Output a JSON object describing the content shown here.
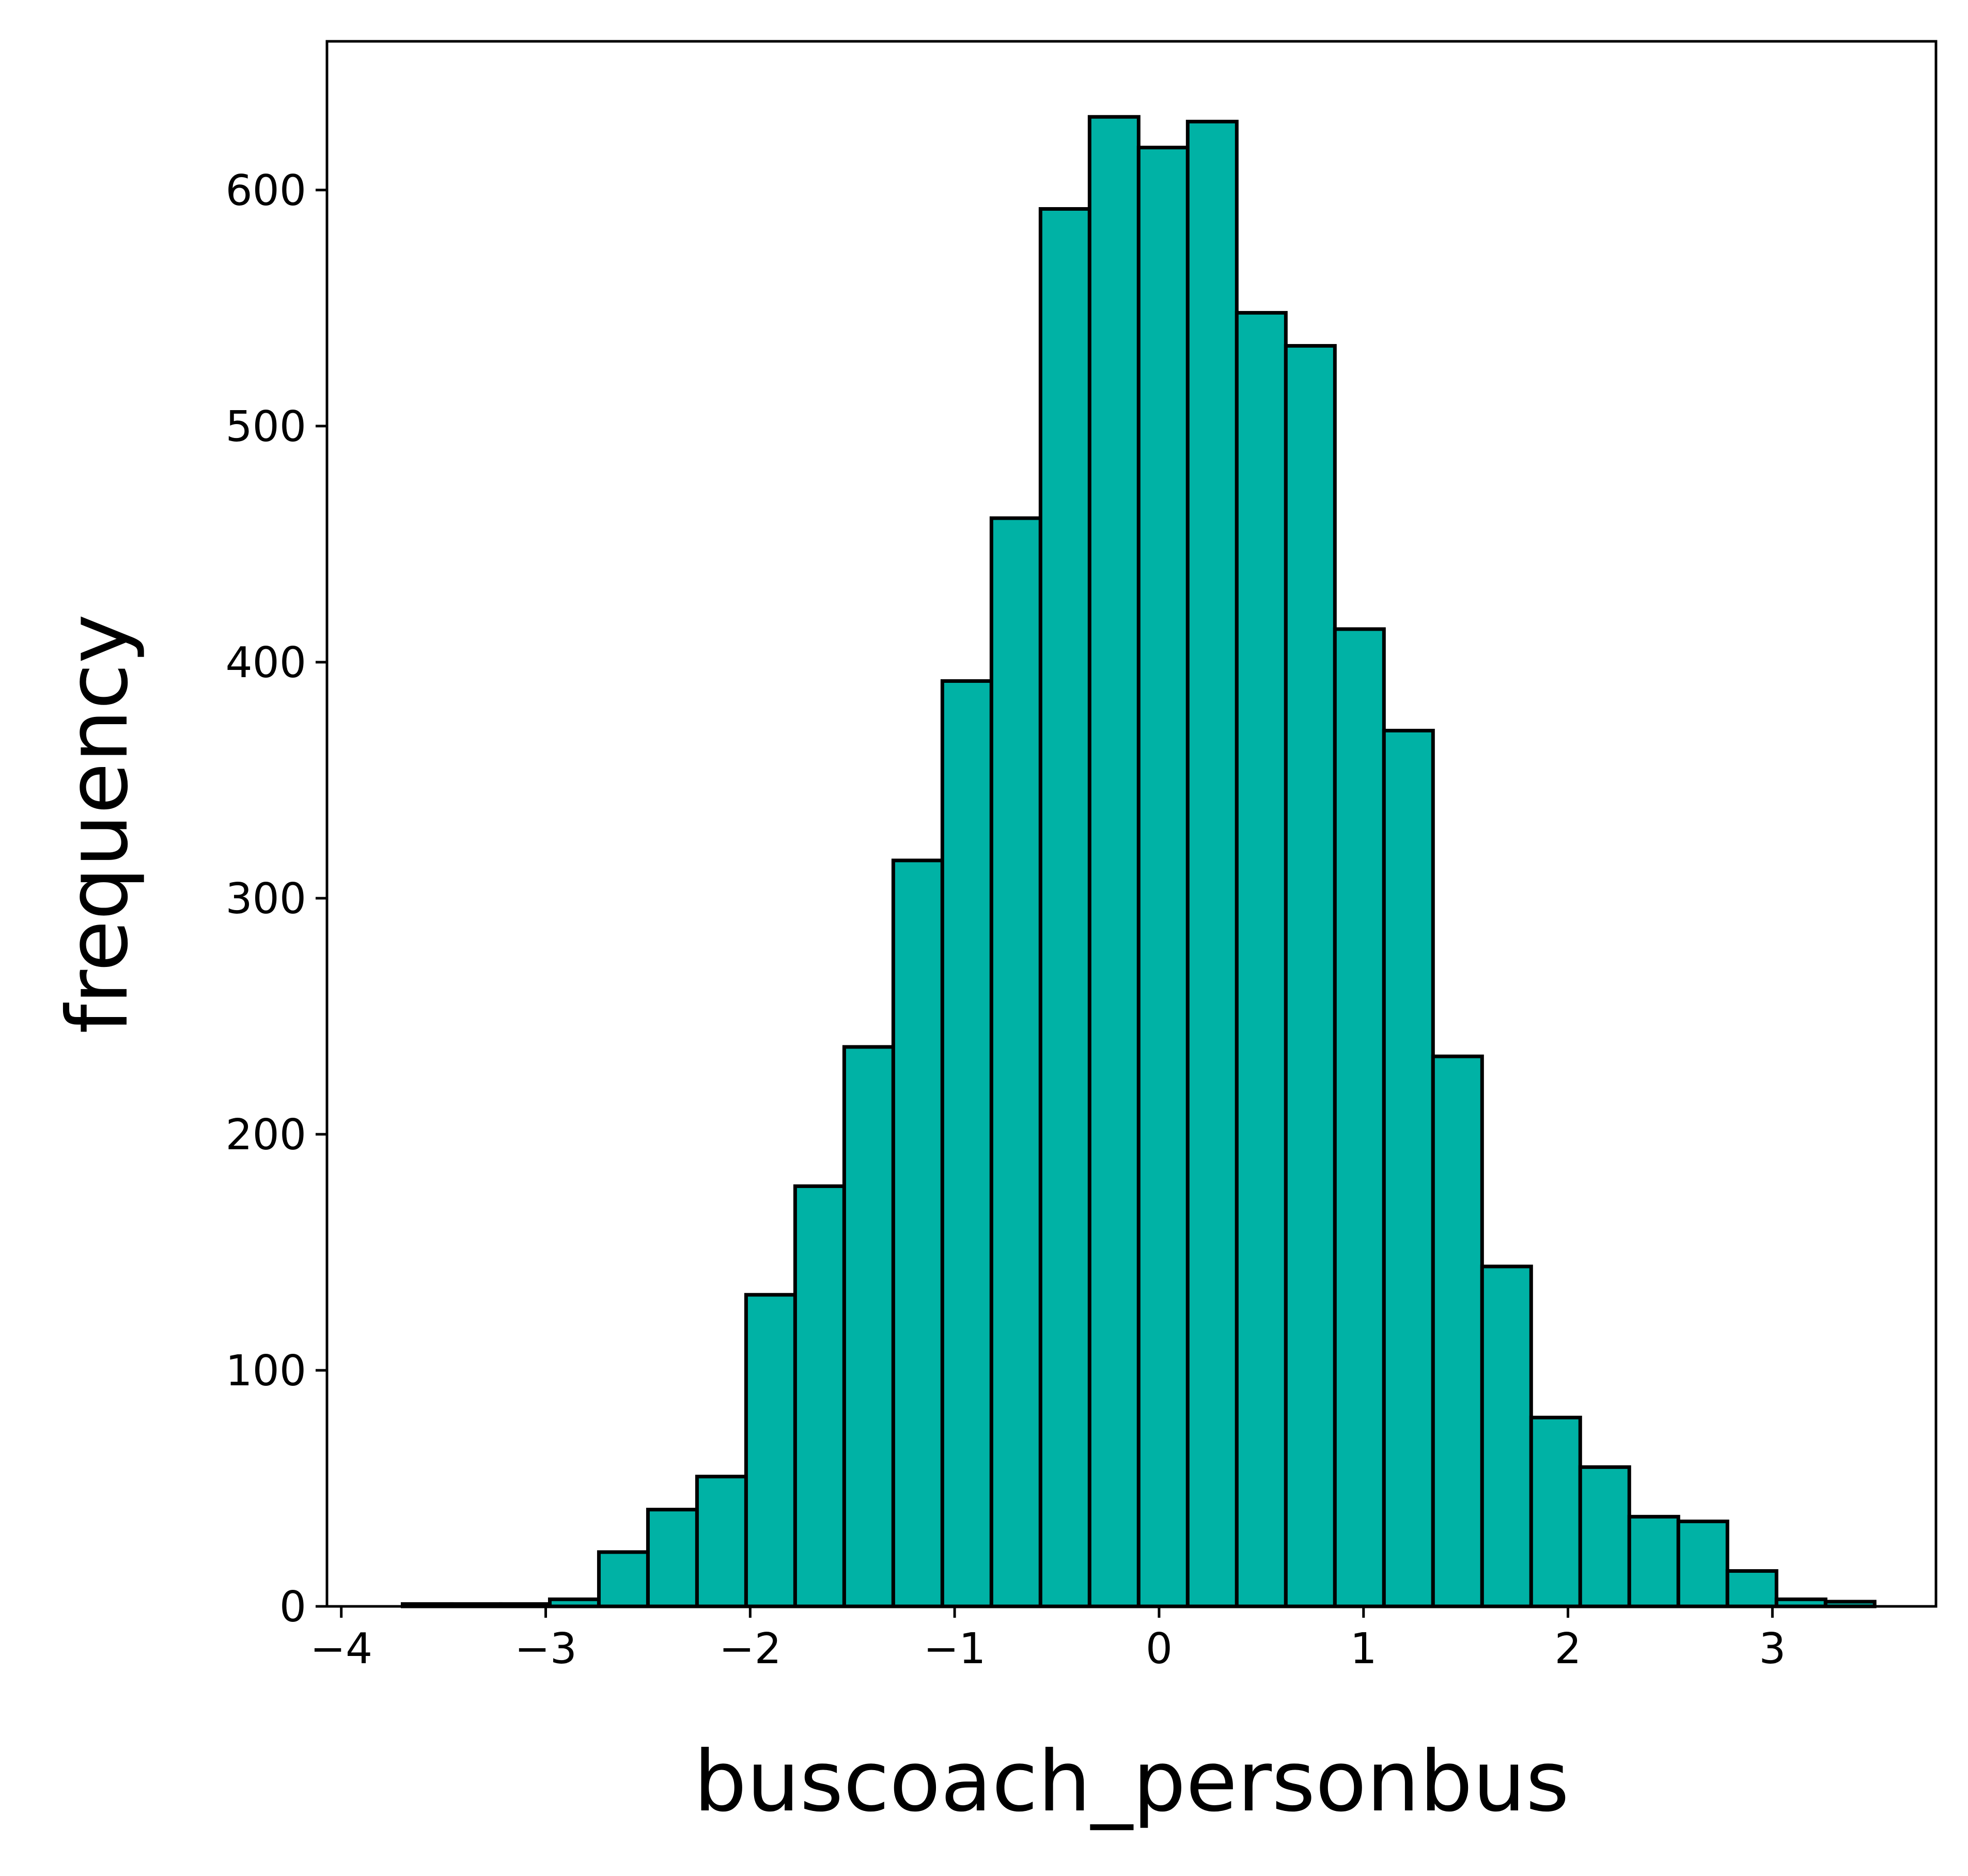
{
  "chart_data": {
    "type": "bar",
    "subtype": "histogram",
    "title": "",
    "xlabel": "buscoach_personbus",
    "ylabel": "frequency",
    "xlim": [
      -4.07,
      3.8
    ],
    "ylim": [
      0,
      663
    ],
    "bar_color": "#00b2a5",
    "edge_color": "#000000",
    "grid": false,
    "legend": "none",
    "bin_edges": [
      -3.7,
      -3.46,
      -3.22,
      -2.98,
      -2.74,
      -2.5,
      -2.26,
      -2.02,
      -1.78,
      -1.54,
      -1.3,
      -1.06,
      -0.82,
      -0.58,
      -0.34,
      -0.1,
      0.14,
      0.38,
      0.62,
      0.86,
      1.1,
      1.34,
      1.58,
      1.82,
      2.06,
      2.3,
      2.54,
      2.78,
      3.02,
      3.26,
      3.5
    ],
    "values": [
      1,
      1,
      1,
      3,
      23,
      41,
      55,
      132,
      178,
      237,
      316,
      392,
      461,
      592,
      631,
      618,
      629,
      548,
      534,
      414,
      371,
      233,
      144,
      80,
      59,
      38,
      36,
      15,
      3,
      2
    ],
    "x_ticks": [
      {
        "value": -4,
        "label": "−4"
      },
      {
        "value": -3,
        "label": "−3"
      },
      {
        "value": -2,
        "label": "−2"
      },
      {
        "value": -1,
        "label": "−1"
      },
      {
        "value": 0,
        "label": "0"
      },
      {
        "value": 1,
        "label": "1"
      },
      {
        "value": 2,
        "label": "2"
      },
      {
        "value": 3,
        "label": "3"
      }
    ],
    "y_ticks": [
      {
        "value": 0,
        "label": "0"
      },
      {
        "value": 100,
        "label": "100"
      },
      {
        "value": 200,
        "label": "200"
      },
      {
        "value": 300,
        "label": "300"
      },
      {
        "value": 400,
        "label": "400"
      },
      {
        "value": 500,
        "label": "500"
      },
      {
        "value": 600,
        "label": "600"
      }
    ]
  }
}
